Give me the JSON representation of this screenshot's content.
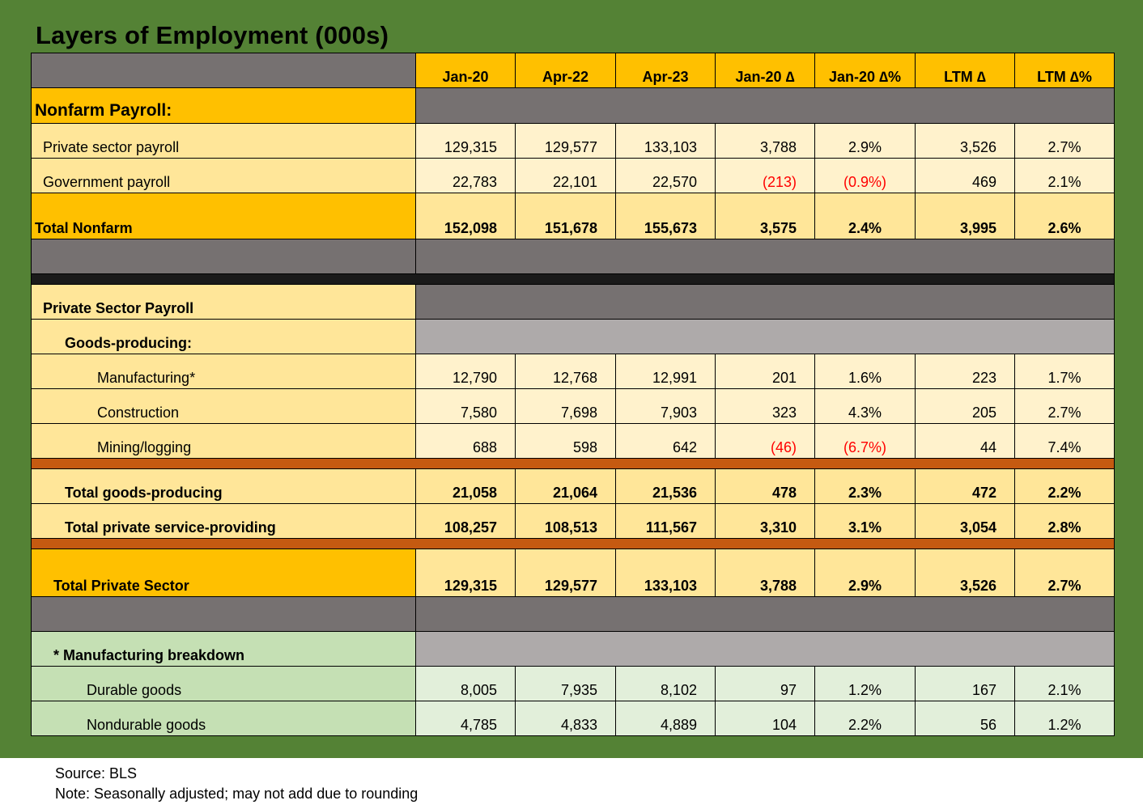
{
  "title": "Layers of Employment (000s)",
  "columns": [
    "Jan-20",
    "Apr-22",
    "Apr-23",
    "Jan-20 ∆",
    "Jan-20 ∆%",
    "LTM ∆",
    "LTM ∆%"
  ],
  "sections": {
    "nonfarm_label": "Nonfarm Payroll:",
    "private_label": "Private Sector Payroll",
    "goods_label": "Goods-producing:",
    "mfg_breakdown_label": "* Manufacturing breakdown"
  },
  "rows": {
    "private_sector_payroll": {
      "label": "Private sector payroll",
      "values": [
        "129,315",
        "129,577",
        "133,103",
        "3,788",
        "2.9%",
        "3,526",
        "2.7%"
      ]
    },
    "government_payroll": {
      "label": "Government payroll",
      "values": [
        "22,783",
        "22,101",
        "22,570",
        "(213)",
        "(0.9%)",
        "469",
        "2.1%"
      ]
    },
    "total_nonfarm": {
      "label": "Total Nonfarm",
      "values": [
        "152,098",
        "151,678",
        "155,673",
        "3,575",
        "2.4%",
        "3,995",
        "2.6%"
      ]
    },
    "manufacturing": {
      "label": "Manufacturing*",
      "values": [
        "12,790",
        "12,768",
        "12,991",
        "201",
        "1.6%",
        "223",
        "1.7%"
      ]
    },
    "construction": {
      "label": "Construction",
      "values": [
        "7,580",
        "7,698",
        "7,903",
        "323",
        "4.3%",
        "205",
        "2.7%"
      ]
    },
    "mining_logging": {
      "label": "Mining/logging",
      "values": [
        "688",
        "598",
        "642",
        "(46)",
        "(6.7%)",
        "44",
        "7.4%"
      ]
    },
    "total_goods": {
      "label": "Total goods-producing",
      "values": [
        "21,058",
        "21,064",
        "21,536",
        "478",
        "2.3%",
        "472",
        "2.2%"
      ]
    },
    "total_services": {
      "label": "Total private service-providing",
      "values": [
        "108,257",
        "108,513",
        "111,567",
        "3,310",
        "3.1%",
        "3,054",
        "2.8%"
      ]
    },
    "total_private": {
      "label": "Total Private Sector",
      "values": [
        "129,315",
        "129,577",
        "133,103",
        "3,788",
        "2.9%",
        "3,526",
        "2.7%"
      ]
    },
    "durable_goods": {
      "label": "Durable goods",
      "values": [
        "8,005",
        "7,935",
        "8,102",
        "97",
        "1.2%",
        "167",
        "2.1%"
      ]
    },
    "nondurable_goods": {
      "label": "Nondurable goods",
      "values": [
        "4,785",
        "4,833",
        "4,889",
        "104",
        "2.2%",
        "56",
        "1.2%"
      ]
    }
  },
  "colors": {
    "panel": "#548235",
    "header": "#ffc000",
    "negative": "#ff0000",
    "separator": "#c55a11"
  },
  "footer": {
    "source": "Source: BLS",
    "note": "Note: Seasonally adjusted; may not add due to rounding"
  }
}
